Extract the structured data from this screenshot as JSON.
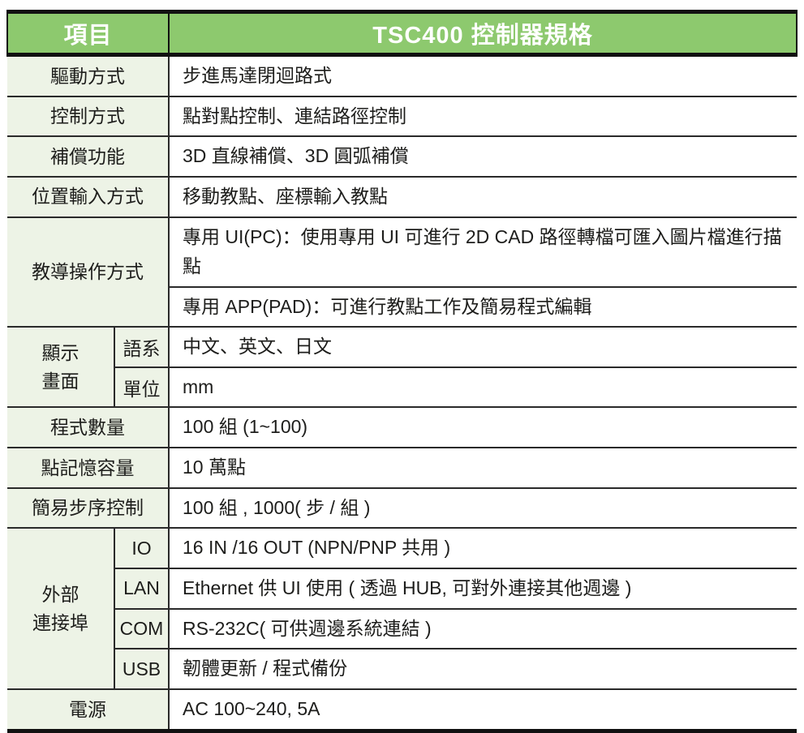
{
  "colors": {
    "header_bg": "#8dc96e",
    "label_bg": "#edf3e6",
    "border_thick": "#111111",
    "border_thin": "#2a2a2a",
    "header_text": "#ffffff",
    "body_text": "#1d1d1b"
  },
  "spec_table": {
    "header": {
      "items_label": "項目",
      "title": "TSC400 控制器規格"
    },
    "rows": {
      "drive_method": {
        "label": "驅動方式",
        "value": "步進馬達閉迴路式"
      },
      "control_method": {
        "label": "控制方式",
        "value": "點對點控制、連結路徑控制"
      },
      "compensation": {
        "label": "補償功能",
        "value": "3D 直線補償、3D 圓弧補償"
      },
      "position_input": {
        "label": "位置輸入方式",
        "value": "移動教點、座標輸入教點"
      },
      "teaching_operation": {
        "label": "教導操作方式",
        "pc_value": "專用 UI(PC)：使用專用 UI 可進行 2D CAD 路徑轉檔可匯入圖片檔進行描點",
        "app_value": "專用 APP(PAD)：可進行教點工作及簡易程式編輯"
      },
      "display_screen": {
        "label": "顯示\n畫面",
        "language": {
          "sub_label": "語系",
          "value": "中文、英文、日文"
        },
        "unit": {
          "sub_label": "單位",
          "value": "mm"
        }
      },
      "program_count": {
        "label": "程式數量",
        "value": "100 組 (1~100)"
      },
      "point_memory": {
        "label": "點記憶容量",
        "value": "10 萬點"
      },
      "step_control": {
        "label": "簡易步序控制",
        "value": "100 組 , 1000( 步 / 組 )"
      },
      "external_ports": {
        "label": "外部\n連接埠",
        "io": {
          "sub_label": "IO",
          "value": "16 IN /16 OUT (NPN/PNP 共用 )"
        },
        "lan": {
          "sub_label": "LAN",
          "value": "Ethernet 供 UI 使用 ( 透過 HUB, 可對外連接其他週邊 )"
        },
        "com": {
          "sub_label": "COM",
          "value": "RS-232C( 可供週邊系統連結 )"
        },
        "usb": {
          "sub_label": "USB",
          "value": "韌體更新 / 程式備份"
        }
      },
      "power": {
        "label": "電源",
        "value": "AC 100~240, 5A"
      }
    }
  }
}
